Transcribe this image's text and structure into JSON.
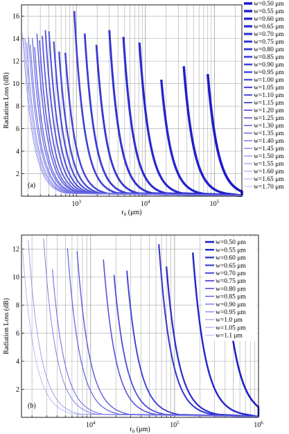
{
  "chart_data": [
    {
      "type": "line",
      "panel_label": "(a)",
      "xlabel": "r0 (μm)",
      "xlabel_main": "r",
      "xlabel_sub": "0",
      "xlabel_unit": " (μm)",
      "ylabel": "Radiation Loss (dB)",
      "xscale": "log",
      "xlim": [
        160,
        250000
      ],
      "ylim": [
        0,
        17
      ],
      "grid": true,
      "legend_position": "right (outside)",
      "x_tick_labels": [
        {
          "base": "10",
          "exp": "3",
          "value": 1000
        },
        {
          "base": "10",
          "exp": "4",
          "value": 10000
        },
        {
          "base": "10",
          "exp": "5",
          "value": 100000
        }
      ],
      "y_ticks": [
        2,
        4,
        6,
        8,
        10,
        12,
        14,
        16
      ],
      "series": [
        {
          "name": "w=0.50 μm",
          "start_x": 80000,
          "start_y": 10.8
        },
        {
          "name": "w=0.55 μm",
          "start_x": 36000,
          "start_y": 11.5
        },
        {
          "name": "w=0.60 μm",
          "start_x": 17000,
          "start_y": 10.3
        },
        {
          "name": "w=0.65 μm",
          "start_x": 8200,
          "start_y": 13.6
        },
        {
          "name": "w=0.70 μm",
          "start_x": 4800,
          "start_y": 14.1
        },
        {
          "name": "w=0.75 μm",
          "start_x": 3000,
          "start_y": 14.7
        },
        {
          "name": "w=0.80 μm",
          "start_x": 1950,
          "start_y": 13.4
        },
        {
          "name": "w=0.85 μm",
          "start_x": 1320,
          "start_y": 14.4
        },
        {
          "name": "w=0.90 μm",
          "start_x": 930,
          "start_y": 16.4
        },
        {
          "name": "w=0.95 μm",
          "start_x": 690,
          "start_y": 12.7
        },
        {
          "name": "w=1.00 μm",
          "start_x": 560,
          "start_y": 12.8
        },
        {
          "name": "w=1.05 μm",
          "start_x": 470,
          "start_y": 13.7
        },
        {
          "name": "w=1.10 μm",
          "start_x": 400,
          "start_y": 14.6
        },
        {
          "name": "w=1.15 μm",
          "start_x": 355,
          "start_y": 14.7
        },
        {
          "name": "w=1.20 μm",
          "start_x": 320,
          "start_y": 14.2
        },
        {
          "name": "w=1.25 μm",
          "start_x": 292,
          "start_y": 13.8
        },
        {
          "name": "w=1.30 μm",
          "start_x": 268,
          "start_y": 14.4
        },
        {
          "name": "w=1.35 μm",
          "start_x": 248,
          "start_y": 13.2
        },
        {
          "name": "w=1.40 μm",
          "start_x": 230,
          "start_y": 14.0
        },
        {
          "name": "w=1.45 μm",
          "start_x": 215,
          "start_y": 13.4
        },
        {
          "name": "w=1.50 μm",
          "start_x": 202,
          "start_y": 14.1
        },
        {
          "name": "w=1.55 μm",
          "start_x": 190,
          "start_y": 13.6
        },
        {
          "name": "w=1.60 μm",
          "start_x": 180,
          "start_y": 14.0
        },
        {
          "name": "w=1.65 μm",
          "start_x": 172,
          "start_y": 13.9
        },
        {
          "name": "w=1.70 μm",
          "start_x": 165,
          "start_y": 14.4
        }
      ]
    },
    {
      "type": "line",
      "panel_label": "(b)",
      "xlabel": "r0 (μm)",
      "xlabel_main": "r",
      "xlabel_sub": "0",
      "xlabel_unit": " (μm)",
      "ylabel": "Radiation Loss (dB)",
      "xscale": "log",
      "xlim": [
        1500,
        1000000
      ],
      "ylim": [
        0,
        13
      ],
      "grid": true,
      "legend_position": "top-right (inside)",
      "x_tick_labels": [
        {
          "base": "10",
          "exp": "4",
          "value": 10000
        },
        {
          "base": "10",
          "exp": "5",
          "value": 100000
        },
        {
          "base": "10",
          "exp": "6",
          "value": 1000000
        }
      ],
      "y_ticks": [
        2,
        4,
        6,
        8,
        10,
        12
      ],
      "series": [
        {
          "name": "w=0.50 μm",
          "start_x": 400000,
          "start_y": 10.4
        },
        {
          "name": "w=0.55 μm",
          "start_x": 165000,
          "start_y": 11.7
        },
        {
          "name": "w=0.60 μm",
          "start_x": 80000,
          "start_y": 10.7
        },
        {
          "name": "w=0.65 μm",
          "start_x": 65000,
          "start_y": 12.3
        },
        {
          "name": "w=0.70 μm",
          "start_x": 27000,
          "start_y": 10.4
        },
        {
          "name": "w=0.75 μm",
          "start_x": 19000,
          "start_y": 10.1
        },
        {
          "name": "w=0.80 μm",
          "start_x": 14200,
          "start_y": 11.2
        },
        {
          "name": "w=0.85 μm",
          "start_x": 6900,
          "start_y": 11.8
        },
        {
          "name": "w=0.90 μm",
          "start_x": 5300,
          "start_y": 12.0
        },
        {
          "name": "w=0.95 μm",
          "start_x": 3500,
          "start_y": 10.5
        },
        {
          "name": "w=1.0 μm",
          "start_x": 2750,
          "start_y": 12.7
        },
        {
          "name": "w=1.05 μm",
          "start_x": 1800,
          "start_y": 12.6
        },
        {
          "name": "w=1.1 μm",
          "start_x": 1550,
          "start_y": 11.8
        }
      ]
    }
  ]
}
